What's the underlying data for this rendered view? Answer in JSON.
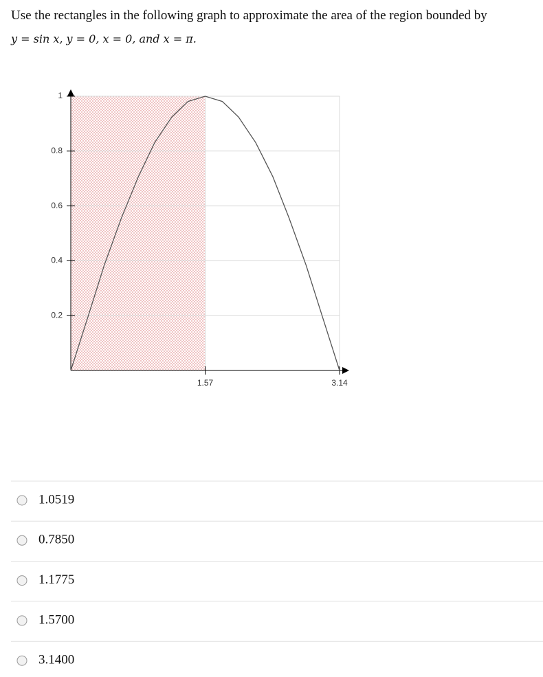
{
  "question": {
    "text": "Use the rectangles in the following graph to approximate the area of the region bounded by",
    "math": "y = sin x,  y = 0,  x = 0,  and  x = π."
  },
  "chart_data": {
    "type": "line",
    "x": [
      0,
      0.2,
      0.39,
      0.59,
      0.79,
      0.98,
      1.18,
      1.37,
      1.57,
      1.77,
      1.96,
      2.16,
      2.36,
      2.55,
      2.75,
      2.94,
      3.14
    ],
    "series": [
      {
        "color": "#555555",
        "values": [
          0,
          0.195,
          0.383,
          0.555,
          0.707,
          0.831,
          0.924,
          0.981,
          1,
          0.981,
          0.924,
          0.831,
          0.707,
          0.556,
          0.383,
          0.196,
          0
        ]
      }
    ],
    "rectangles": [
      {
        "x0": 0,
        "x1": 1.57,
        "height": 1,
        "color": "#f2c6c6"
      }
    ],
    "xlim": [
      0,
      3.14
    ],
    "ylim": [
      0,
      1
    ],
    "xticks": [
      1.57,
      3.14
    ],
    "yticks": [
      0.2,
      0.4,
      0.6,
      0.8,
      1
    ],
    "grid": true
  },
  "options": [
    "1.0519",
    "0.7850",
    "1.1775",
    "1.5700",
    "3.1400"
  ]
}
